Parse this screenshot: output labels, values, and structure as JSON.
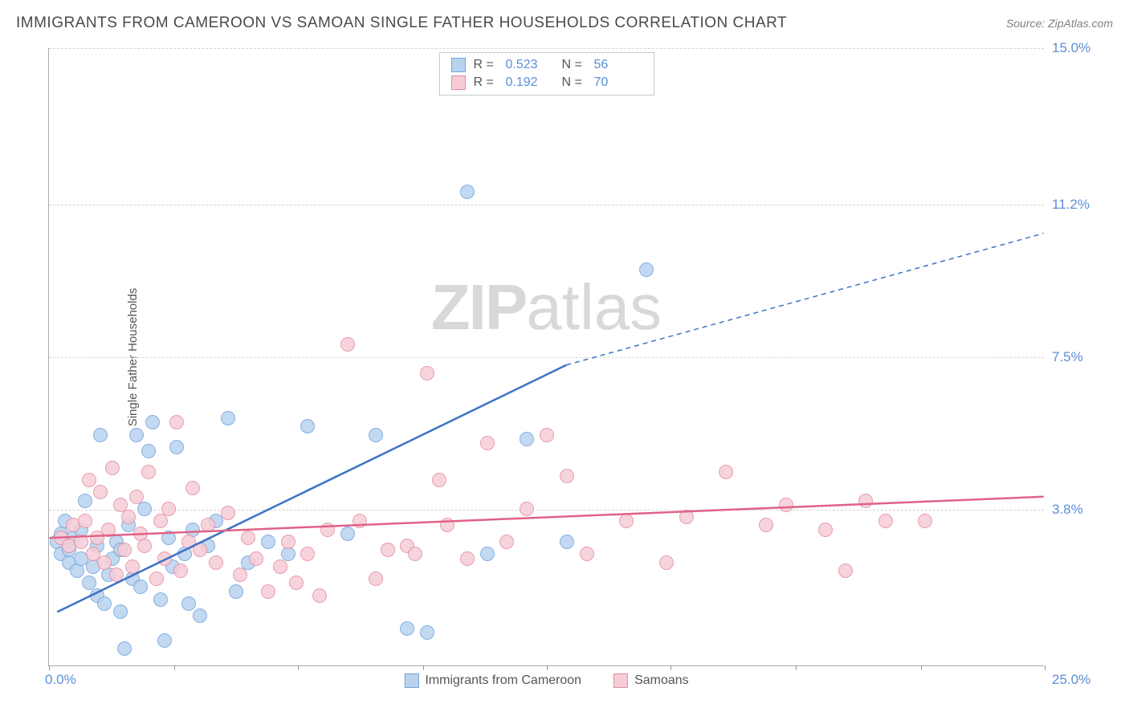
{
  "title": "IMMIGRANTS FROM CAMEROON VS SAMOAN SINGLE FATHER HOUSEHOLDS CORRELATION CHART",
  "source": "Source: ZipAtlas.com",
  "ylabel": "Single Father Households",
  "watermark_a": "ZIP",
  "watermark_b": "atlas",
  "chart": {
    "type": "scatter",
    "xlim": [
      0,
      25
    ],
    "ylim": [
      0,
      15
    ],
    "grid_color": "#d5d5d5",
    "axis_color": "#aaaaaa",
    "background_color": "#ffffff",
    "yticks": [
      {
        "v": 3.8,
        "label": "3.8%"
      },
      {
        "v": 7.5,
        "label": "7.5%"
      },
      {
        "v": 11.2,
        "label": "11.2%"
      },
      {
        "v": 15.0,
        "label": "15.0%"
      }
    ],
    "xtick_left": "0.0%",
    "xtick_right": "25.0%",
    "xtick_positions": [
      0,
      3.15,
      6.25,
      9.4,
      12.5,
      15.6,
      18.75,
      21.9,
      25.0
    ],
    "tick_label_color": "#5b8fd6",
    "series": [
      {
        "name": "Immigrants from Cameroon",
        "fill": "#b9d3ef",
        "stroke": "#6fa3dc",
        "line_color": "#3d73c5",
        "marker_radius": 9,
        "R": "0.523",
        "N": "56",
        "trend": {
          "x1": 0.2,
          "y1": 1.3,
          "x2": 13.0,
          "y2": 7.3,
          "x3": 25.0,
          "y3": 10.5,
          "dash_from": 13.0
        },
        "points": [
          [
            0.2,
            3.0
          ],
          [
            0.3,
            2.7
          ],
          [
            0.3,
            3.2
          ],
          [
            0.4,
            3.5
          ],
          [
            0.5,
            2.5
          ],
          [
            0.5,
            2.8
          ],
          [
            0.6,
            3.1
          ],
          [
            0.7,
            2.3
          ],
          [
            0.8,
            2.6
          ],
          [
            0.8,
            3.3
          ],
          [
            0.9,
            4.0
          ],
          [
            1.0,
            2.0
          ],
          [
            1.1,
            2.4
          ],
          [
            1.2,
            1.7
          ],
          [
            1.2,
            2.9
          ],
          [
            1.3,
            5.6
          ],
          [
            1.4,
            1.5
          ],
          [
            1.5,
            2.2
          ],
          [
            1.6,
            2.6
          ],
          [
            1.7,
            3.0
          ],
          [
            1.8,
            1.3
          ],
          [
            1.8,
            2.8
          ],
          [
            1.9,
            0.4
          ],
          [
            2.0,
            3.4
          ],
          [
            2.1,
            2.1
          ],
          [
            2.2,
            5.6
          ],
          [
            2.3,
            1.9
          ],
          [
            2.4,
            3.8
          ],
          [
            2.5,
            5.2
          ],
          [
            2.6,
            5.9
          ],
          [
            2.8,
            1.6
          ],
          [
            2.9,
            0.6
          ],
          [
            3.0,
            3.1
          ],
          [
            3.1,
            2.4
          ],
          [
            3.2,
            5.3
          ],
          [
            3.4,
            2.7
          ],
          [
            3.5,
            1.5
          ],
          [
            3.6,
            3.3
          ],
          [
            3.8,
            1.2
          ],
          [
            4.0,
            2.9
          ],
          [
            4.2,
            3.5
          ],
          [
            4.5,
            6.0
          ],
          [
            4.7,
            1.8
          ],
          [
            5.0,
            2.5
          ],
          [
            5.5,
            3.0
          ],
          [
            6.0,
            2.7
          ],
          [
            6.5,
            5.8
          ],
          [
            7.5,
            3.2
          ],
          [
            8.2,
            5.6
          ],
          [
            9.0,
            0.9
          ],
          [
            9.5,
            0.8
          ],
          [
            10.5,
            11.5
          ],
          [
            11.0,
            2.7
          ],
          [
            12.0,
            5.5
          ],
          [
            13.0,
            3.0
          ],
          [
            15.0,
            9.6
          ]
        ]
      },
      {
        "name": "Samoans",
        "fill": "#f6cdd6",
        "stroke": "#e48ba3",
        "line_color": "#e06287",
        "marker_radius": 9,
        "R": "0.192",
        "N": "70",
        "trend": {
          "x1": 0.0,
          "y1": 3.1,
          "x2": 25.0,
          "y2": 4.1
        },
        "points": [
          [
            0.3,
            3.1
          ],
          [
            0.5,
            2.9
          ],
          [
            0.6,
            3.4
          ],
          [
            0.8,
            3.0
          ],
          [
            0.9,
            3.5
          ],
          [
            1.0,
            4.5
          ],
          [
            1.1,
            2.7
          ],
          [
            1.2,
            3.1
          ],
          [
            1.3,
            4.2
          ],
          [
            1.4,
            2.5
          ],
          [
            1.5,
            3.3
          ],
          [
            1.6,
            4.8
          ],
          [
            1.7,
            2.2
          ],
          [
            1.8,
            3.9
          ],
          [
            1.9,
            2.8
          ],
          [
            2.0,
            3.6
          ],
          [
            2.1,
            2.4
          ],
          [
            2.2,
            4.1
          ],
          [
            2.3,
            3.2
          ],
          [
            2.4,
            2.9
          ],
          [
            2.5,
            4.7
          ],
          [
            2.7,
            2.1
          ],
          [
            2.8,
            3.5
          ],
          [
            2.9,
            2.6
          ],
          [
            3.0,
            3.8
          ],
          [
            3.2,
            5.9
          ],
          [
            3.3,
            2.3
          ],
          [
            3.5,
            3.0
          ],
          [
            3.6,
            4.3
          ],
          [
            3.8,
            2.8
          ],
          [
            4.0,
            3.4
          ],
          [
            4.2,
            2.5
          ],
          [
            4.5,
            3.7
          ],
          [
            4.8,
            2.2
          ],
          [
            5.0,
            3.1
          ],
          [
            5.2,
            2.6
          ],
          [
            5.5,
            1.8
          ],
          [
            5.8,
            2.4
          ],
          [
            6.0,
            3.0
          ],
          [
            6.2,
            2.0
          ],
          [
            6.5,
            2.7
          ],
          [
            6.8,
            1.7
          ],
          [
            7.0,
            3.3
          ],
          [
            7.5,
            7.8
          ],
          [
            7.8,
            3.5
          ],
          [
            8.2,
            2.1
          ],
          [
            8.5,
            2.8
          ],
          [
            9.0,
            2.9
          ],
          [
            9.2,
            2.7
          ],
          [
            9.5,
            7.1
          ],
          [
            9.8,
            4.5
          ],
          [
            10.0,
            3.4
          ],
          [
            10.5,
            2.6
          ],
          [
            11.0,
            5.4
          ],
          [
            11.5,
            3.0
          ],
          [
            12.0,
            3.8
          ],
          [
            12.5,
            5.6
          ],
          [
            13.0,
            4.6
          ],
          [
            13.5,
            2.7
          ],
          [
            14.5,
            3.5
          ],
          [
            15.5,
            2.5
          ],
          [
            16.0,
            3.6
          ],
          [
            17.0,
            4.7
          ],
          [
            18.0,
            3.4
          ],
          [
            18.5,
            3.9
          ],
          [
            19.5,
            3.3
          ],
          [
            20.0,
            2.3
          ],
          [
            20.5,
            4.0
          ],
          [
            21.0,
            3.5
          ],
          [
            22.0,
            3.5
          ]
        ]
      }
    ]
  },
  "legend_bottom": [
    {
      "label": "Immigrants from Cameroon",
      "fill": "#b9d3ef",
      "stroke": "#6fa3dc"
    },
    {
      "label": "Samoans",
      "fill": "#f6cdd6",
      "stroke": "#e48ba3"
    }
  ]
}
